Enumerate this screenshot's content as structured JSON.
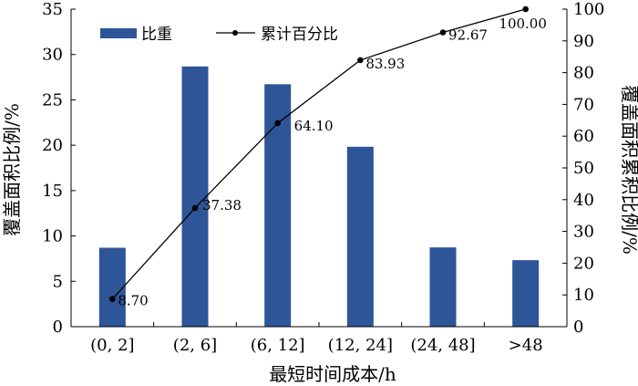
{
  "chart_data": {
    "type": "bar+line",
    "categories": [
      "(0, 2]",
      "(2, 6]",
      "(6, 12]",
      "(12, 24]",
      "(24, 48]",
      ">48"
    ],
    "series": [
      {
        "name": "比重",
        "type": "bar",
        "axis": "left",
        "values": [
          8.7,
          28.68,
          26.72,
          19.83,
          8.74,
          7.33
        ]
      },
      {
        "name": "累计百分比",
        "type": "line",
        "axis": "right",
        "values": [
          8.7,
          37.38,
          64.1,
          83.93,
          92.67,
          100.0
        ],
        "labels": [
          "8.70",
          "37.38",
          "64.10",
          "83.93",
          "92.67",
          "100.00"
        ]
      }
    ],
    "xlabel": "最短时间成本/h",
    "ylabel_left": "覆盖面积比例/%",
    "ylabel_right": "覆盖面积累积比例/%",
    "ylim_left": [
      0,
      35
    ],
    "ylim_right": [
      0,
      100
    ],
    "yticks_left": [
      "0",
      "5",
      "10",
      "15",
      "20",
      "25",
      "30",
      "35"
    ],
    "yticks_right": [
      "0",
      "10",
      "20",
      "30",
      "40",
      "50",
      "60",
      "70",
      "80",
      "90",
      "100"
    ],
    "legend_position": "top-left",
    "grid": false,
    "colors": {
      "bar": "#2e5597",
      "line": "#000000"
    }
  }
}
